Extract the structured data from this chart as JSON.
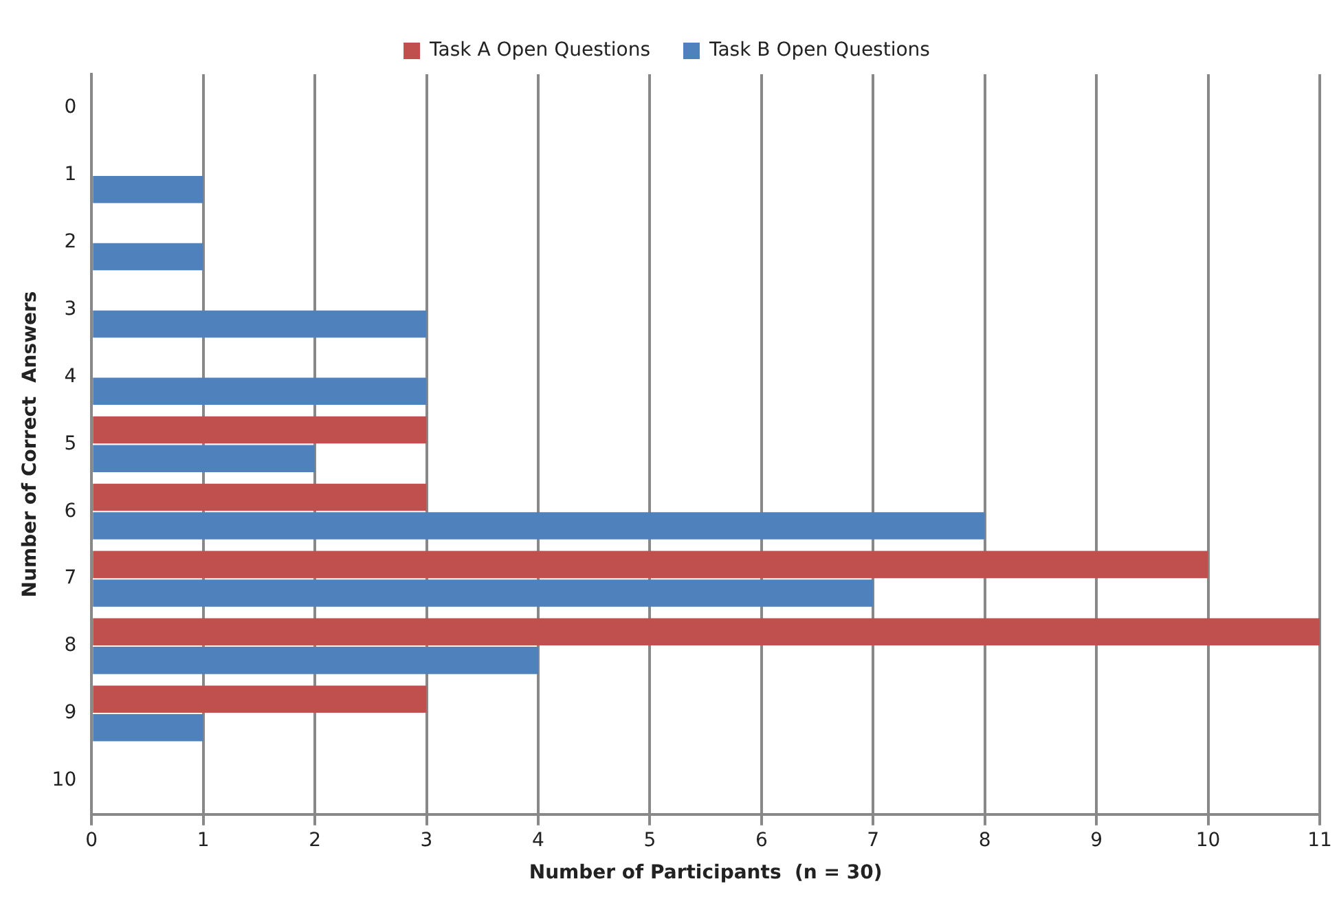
{
  "chart_data": {
    "type": "bar",
    "orientation": "horizontal",
    "xlabel": "Number of Participants  (n = 30)",
    "ylabel": "Number of Correct  Answers",
    "categories": [
      "0",
      "1",
      "2",
      "3",
      "4",
      "5",
      "6",
      "7",
      "8",
      "9",
      "10"
    ],
    "series": [
      {
        "name": "Task A Open Questions",
        "color": "#c0504d",
        "values": [
          0,
          0,
          0,
          0,
          0,
          3,
          3,
          10,
          11,
          3,
          0
        ]
      },
      {
        "name": "Task B Open Questions",
        "color": "#4f81bd",
        "values": [
          0,
          1,
          1,
          3,
          3,
          2,
          8,
          7,
          4,
          1,
          0
        ]
      }
    ],
    "xlim": [
      0,
      11
    ],
    "xticks": [
      0,
      1,
      2,
      3,
      4,
      5,
      6,
      7,
      8,
      9,
      10,
      11
    ],
    "grid": "x",
    "legend": "top"
  }
}
